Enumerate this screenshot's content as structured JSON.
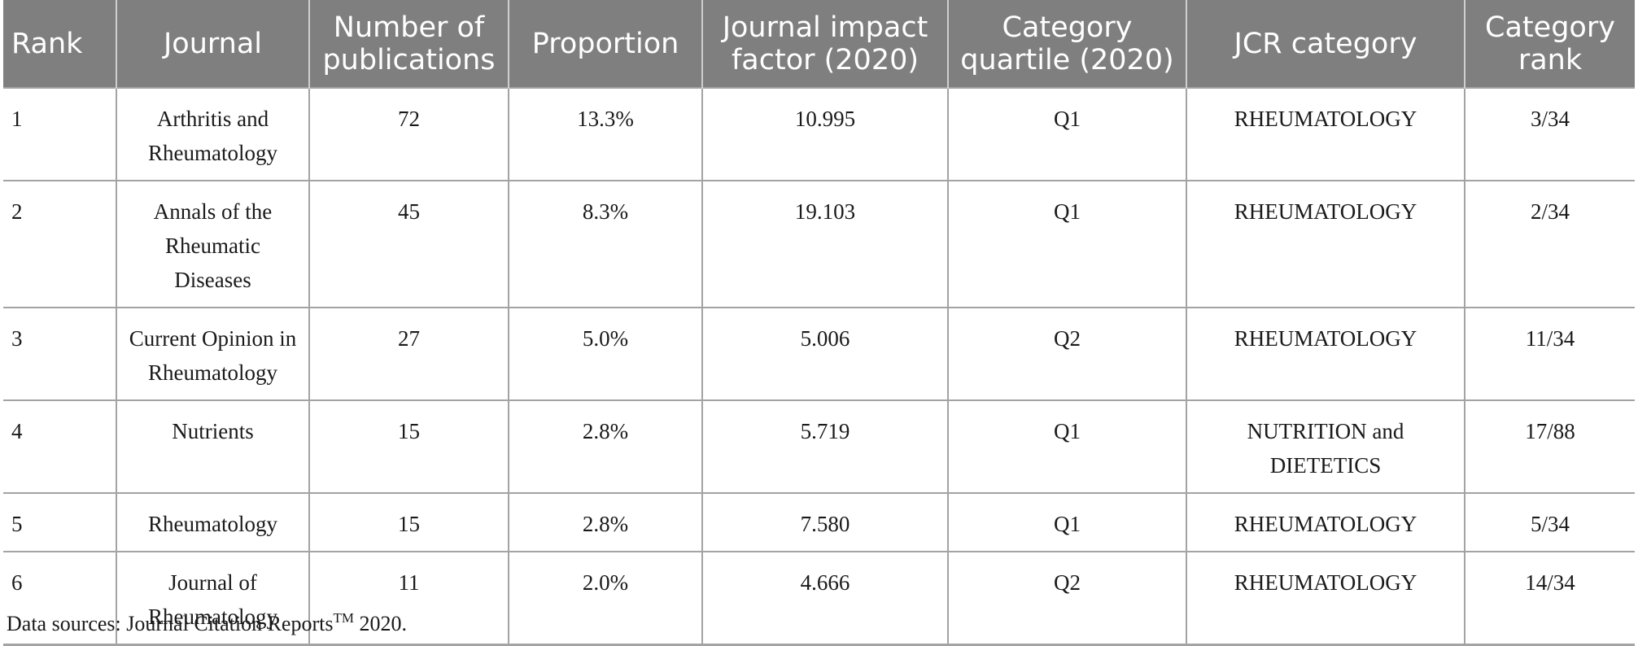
{
  "table": {
    "headers": {
      "rank": "Rank",
      "journal": "Journal",
      "publications": "Number of publications",
      "proportion": "Proportion",
      "impact_factor": "Journal impact factor (2020)",
      "quartile": "Category quartile (2020)",
      "jcr_category": "JCR category",
      "category_rank": "Category rank"
    },
    "rows": [
      {
        "rank": "1",
        "journal": "Arthritis and Rheumatology",
        "publications": "72",
        "proportion": "13.3%",
        "impact_factor": "10.995",
        "quartile": "Q1",
        "jcr_category": "RHEUMATOLOGY",
        "category_rank": "3/34"
      },
      {
        "rank": "2",
        "journal": "Annals of the Rheumatic Diseases",
        "publications": "45",
        "proportion": "8.3%",
        "impact_factor": "19.103",
        "quartile": "Q1",
        "jcr_category": "RHEUMATOLOGY",
        "category_rank": "2/34"
      },
      {
        "rank": "3",
        "journal": "Current Opinion in Rheumatology",
        "publications": "27",
        "proportion": "5.0%",
        "impact_factor": "5.006",
        "quartile": "Q2",
        "jcr_category": "RHEUMATOLOGY",
        "category_rank": "11/34"
      },
      {
        "rank": "4",
        "journal": "Nutrients",
        "publications": "15",
        "proportion": "2.8%",
        "impact_factor": "5.719",
        "quartile": "Q1",
        "jcr_category": "NUTRITION and DIETETICS",
        "category_rank": "17/88"
      },
      {
        "rank": "5",
        "journal": "Rheumatology",
        "publications": "15",
        "proportion": "2.8%",
        "impact_factor": "7.580",
        "quartile": "Q1",
        "jcr_category": "RHEUMATOLOGY",
        "category_rank": "5/34"
      },
      {
        "rank": "6",
        "journal": "Journal of Rheumatology",
        "publications": "11",
        "proportion": "2.0%",
        "impact_factor": "4.666",
        "quartile": "Q2",
        "jcr_category": "RHEUMATOLOGY",
        "category_rank": "14/34"
      }
    ]
  },
  "footnote": {
    "prefix": "Data sources: Journal Citation Reports",
    "superscript": "TM",
    "suffix": " 2020."
  }
}
